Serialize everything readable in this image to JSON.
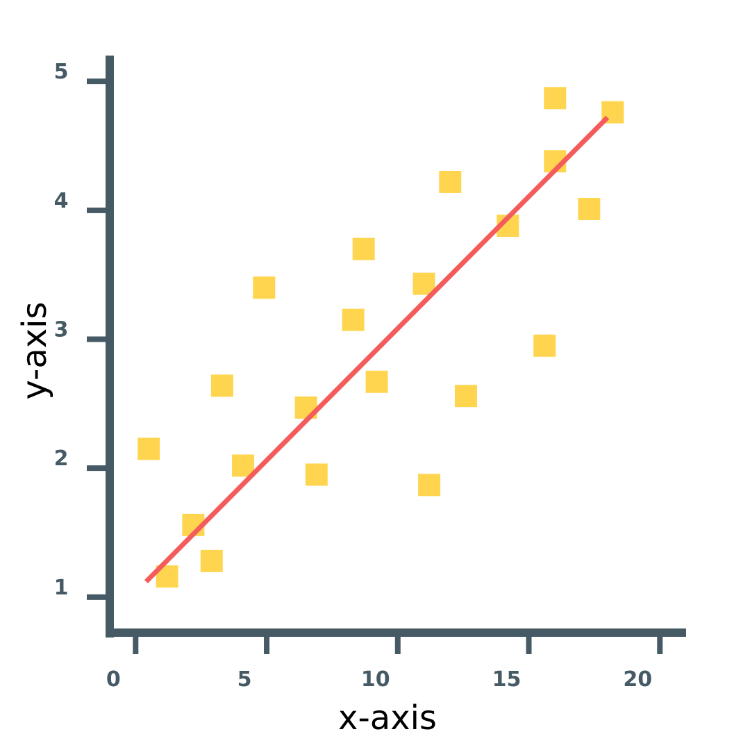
{
  "chart_data": {
    "type": "scatter",
    "xlabel": "x-axis",
    "ylabel": "y-axis",
    "xlim": [
      -1.2,
      21
    ],
    "ylim": [
      0.73,
      5.2
    ],
    "xticks": [
      0,
      5,
      10,
      15,
      20
    ],
    "yticks": [
      1,
      2,
      3,
      4,
      5
    ],
    "grid": false,
    "colors": {
      "axis": "#455a64",
      "points": "#ffd54f",
      "trend": "#f45b5b"
    },
    "points": [
      {
        "x": 0.5,
        "y": 2.15
      },
      {
        "x": 1.2,
        "y": 1.16
      },
      {
        "x": 2.2,
        "y": 1.56
      },
      {
        "x": 2.9,
        "y": 1.28
      },
      {
        "x": 3.3,
        "y": 2.64
      },
      {
        "x": 4.1,
        "y": 2.02
      },
      {
        "x": 4.9,
        "y": 3.4
      },
      {
        "x": 6.5,
        "y": 2.47
      },
      {
        "x": 6.9,
        "y": 1.95
      },
      {
        "x": 8.3,
        "y": 3.15
      },
      {
        "x": 8.7,
        "y": 3.7
      },
      {
        "x": 9.2,
        "y": 2.67
      },
      {
        "x": 11.0,
        "y": 3.43
      },
      {
        "x": 11.2,
        "y": 1.87
      },
      {
        "x": 12.0,
        "y": 4.22
      },
      {
        "x": 12.6,
        "y": 2.56
      },
      {
        "x": 14.2,
        "y": 3.88
      },
      {
        "x": 15.6,
        "y": 2.95
      },
      {
        "x": 16.0,
        "y": 4.87
      },
      {
        "x": 16.0,
        "y": 4.38
      },
      {
        "x": 17.3,
        "y": 4.01
      },
      {
        "x": 18.2,
        "y": 4.76
      }
    ],
    "trendline": {
      "x": [
        0.4,
        18.0
      ],
      "y": [
        1.12,
        4.72
      ]
    }
  }
}
